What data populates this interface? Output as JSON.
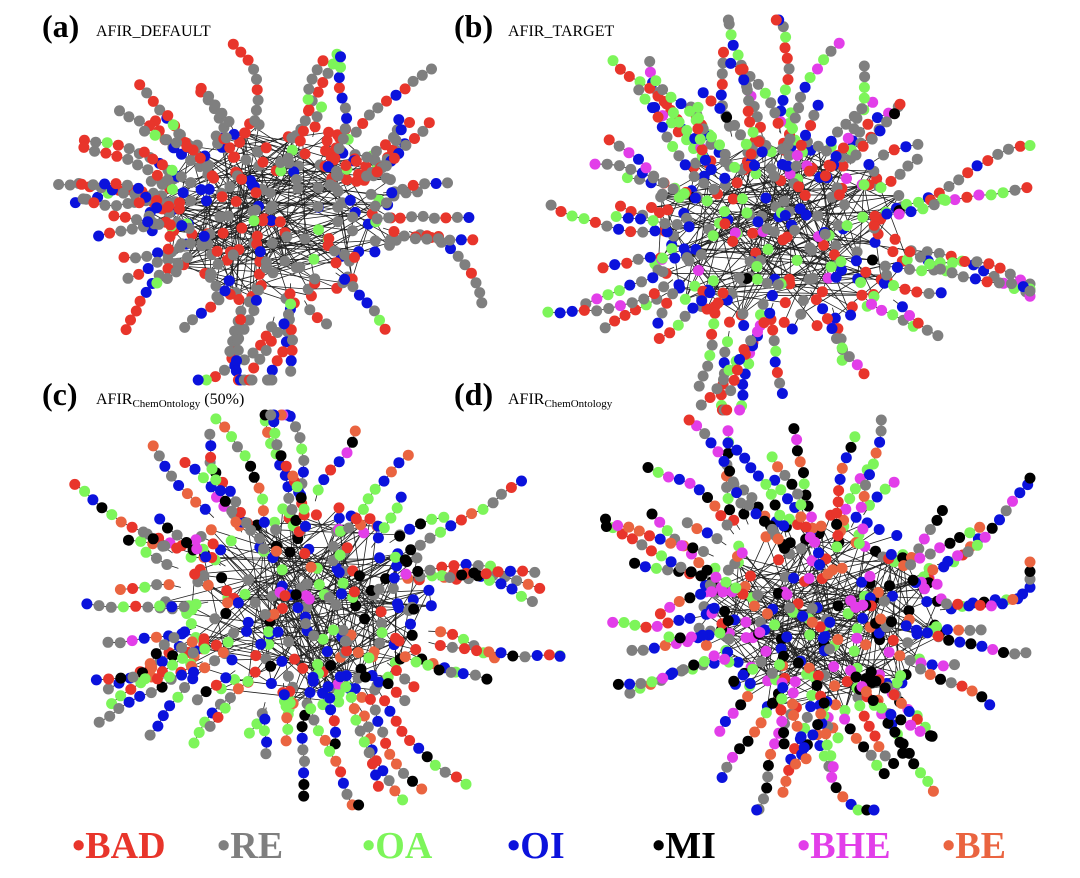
{
  "panels": [
    {
      "letter": "(a)",
      "title": "AFIR_DEFAULT"
    },
    {
      "letter": "(b)",
      "title": "AFIR_TARGET"
    },
    {
      "letter": "(c)",
      "title": "AFIR",
      "subscript": "ChemOntology",
      "suffix": "(50%)"
    },
    {
      "letter": "(d)",
      "title": "AFIR",
      "subscript": "ChemOntology"
    }
  ],
  "legend": [
    {
      "label": "•BAD",
      "color": "#e8352b"
    },
    {
      "label": "•RE",
      "color": "#7f7f7f"
    },
    {
      "label": "•OA",
      "color": "#7df55a"
    },
    {
      "label": "•OI",
      "color": "#0b12dc"
    },
    {
      "label": "•MI",
      "color": "#000000"
    },
    {
      "label": "•BHE",
      "color": "#e23ee9"
    },
    {
      "label": "•BE",
      "color": "#ea6440"
    }
  ]
}
